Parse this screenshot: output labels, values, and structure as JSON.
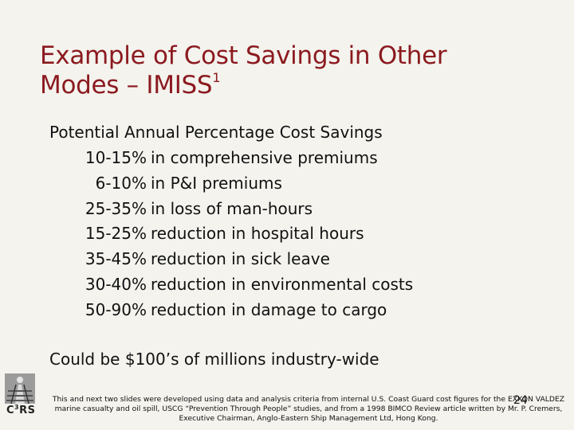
{
  "title": {
    "line1": "Example of Cost Savings in Other",
    "line2": "Modes – IMISS",
    "superscript": "1"
  },
  "heading": "Potential Annual Percentage Cost Savings",
  "items": [
    {
      "pct": "10-15%",
      "desc": "in comprehensive premiums"
    },
    {
      "pct": "6-10%",
      "desc": "in P&I premiums"
    },
    {
      "pct": "25-35%",
      "desc": "in loss of man-hours"
    },
    {
      "pct": "15-25%",
      "desc": "reduction in hospital hours"
    },
    {
      "pct": "35-45%",
      "desc": "reduction in sick leave"
    },
    {
      "pct": "30-40%",
      "desc": "reduction in environmental costs"
    },
    {
      "pct": "50-90%",
      "desc": "reduction in damage to cargo"
    }
  ],
  "summary": "Could be $100’s of millions industry-wide",
  "logo": {
    "icon": "railroad-track-logo-icon",
    "text": "C",
    "sup": "3",
    "text_after": "RS"
  },
  "footnote": "This and next two slides were developed using data and analysis criteria from internal U.S. Coast Guard cost figures for the EXXON VALDEZ marine casualty and oil spill, USCG “Prevention Through People” studies, and from a 1998 BIMCO Review article written by Mr. P. Cremers, Executive Chairman, Anglo-Eastern Ship Management Ltd, Hong Kong.",
  "page_number": "24"
}
